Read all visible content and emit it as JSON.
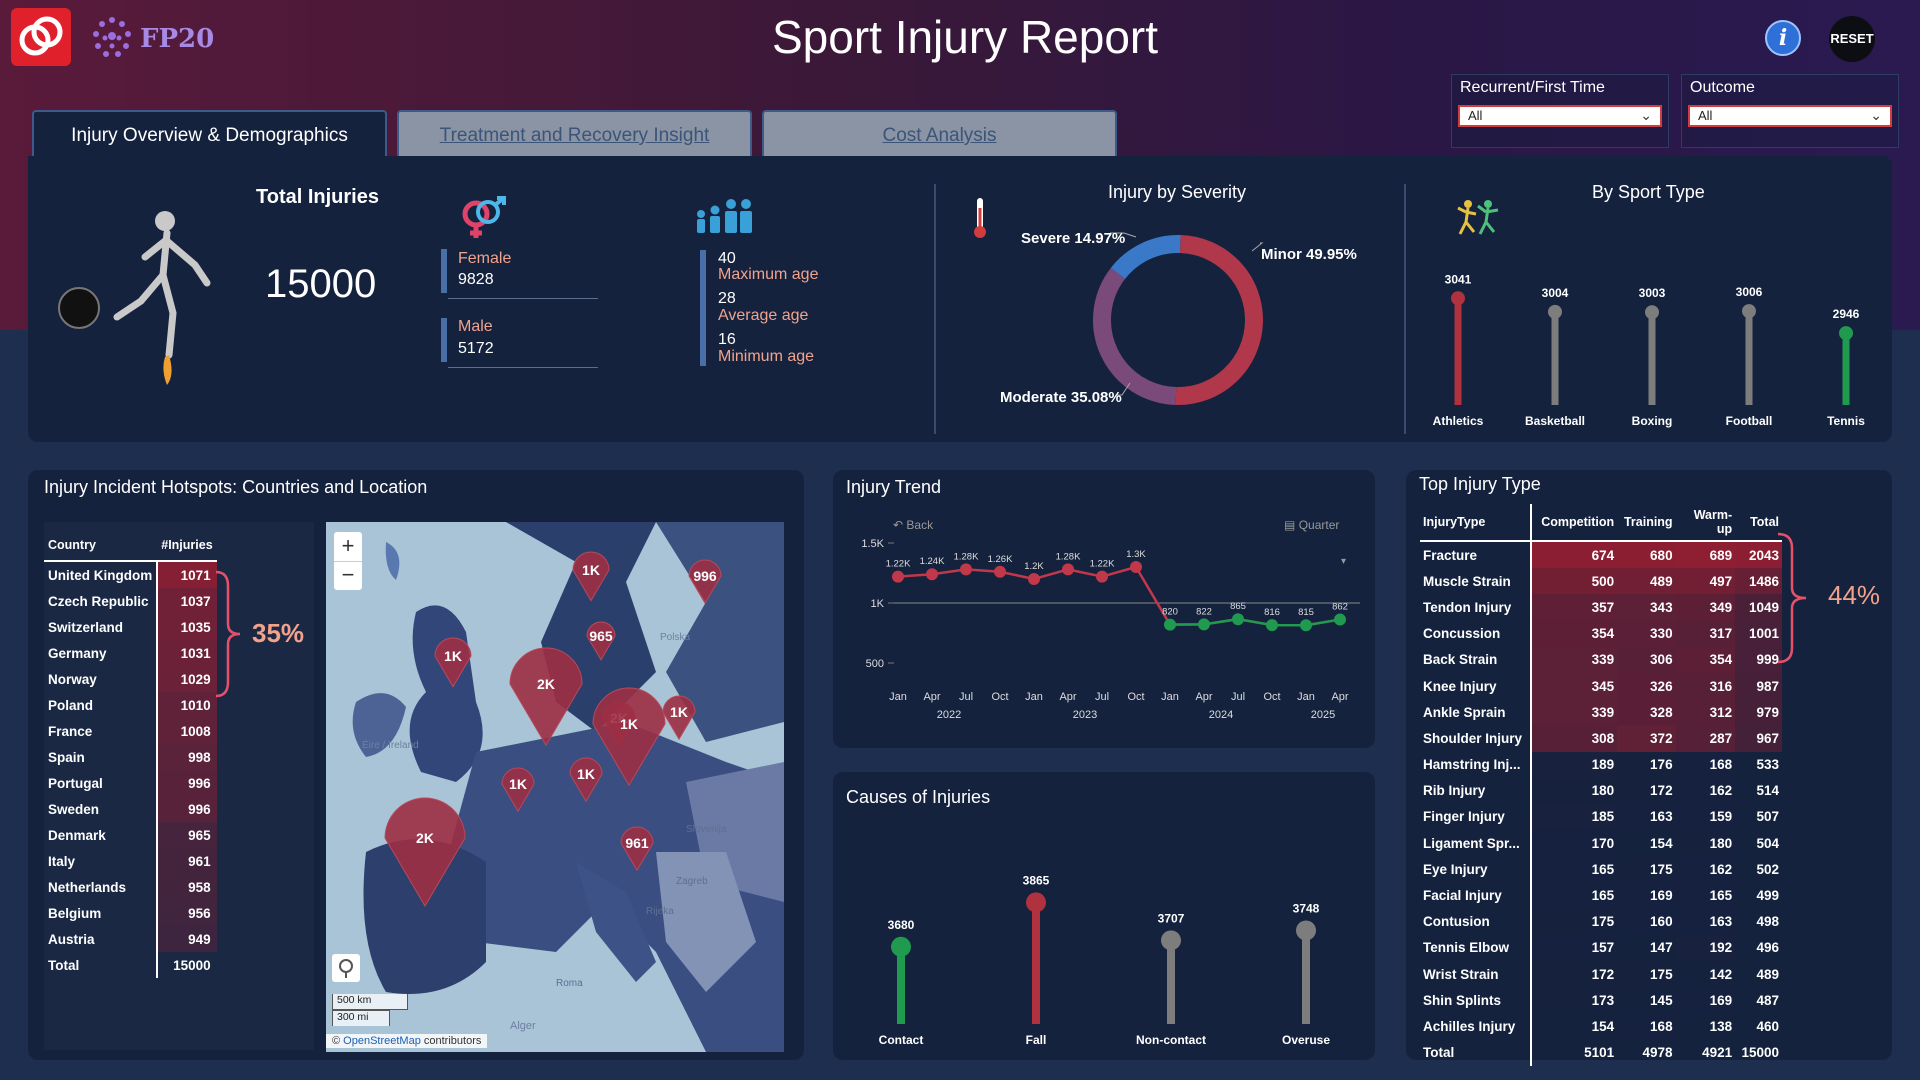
{
  "header": {
    "brand": "FP20",
    "title": "Sport Injury Report",
    "reset_label": "RESET",
    "info_label": "i"
  },
  "filters": [
    {
      "label": "Recurrent/First Time",
      "value": "All"
    },
    {
      "label": "Outcome",
      "value": "All"
    }
  ],
  "tabs": [
    {
      "label": "Injury Overview & Demographics"
    },
    {
      "label": "Treatment and Recovery Insight"
    },
    {
      "label": "Cost Analysis"
    }
  ],
  "kpis": {
    "total_label": "Total Injuries",
    "total_value": "15000",
    "female_label": "Female",
    "female_value": "9828",
    "male_label": "Male",
    "male_value": "5172",
    "max_age_value": "40",
    "max_age_label": "Maximum age",
    "avg_age_value": "28",
    "avg_age_label": "Average age",
    "min_age_value": "16",
    "min_age_label": "Minimum age"
  },
  "severity": {
    "title": "Injury by Severity",
    "slices": [
      {
        "label": "Minor 49.95%",
        "pct": 49.95,
        "color": "#b0384a"
      },
      {
        "label": "Moderate 35.08%",
        "pct": 35.08,
        "color": "#7a4a7a"
      },
      {
        "label": "Severe 14.97%",
        "pct": 14.97,
        "color": "#3a78c8"
      }
    ]
  },
  "sport_type": {
    "title": "By Sport Type",
    "items": [
      {
        "label": "Athletics",
        "value": 3041,
        "color": "#b0323e"
      },
      {
        "label": "Basketball",
        "value": 3004,
        "color": "#7d7d7d"
      },
      {
        "label": "Boxing",
        "value": 3003,
        "color": "#7d7d7d"
      },
      {
        "label": "Football",
        "value": 3006,
        "color": "#7d7d7d"
      },
      {
        "label": "Tennis",
        "value": 2946,
        "color": "#1f9a4e"
      }
    ]
  },
  "hotspots": {
    "title": "Injury Incident Hotspots: Countries and Location",
    "col_country": "Country",
    "col_injuries": "#Injuries",
    "callout": "35%",
    "rows": [
      [
        "United Kingdom",
        "1071"
      ],
      [
        "Czech Republic",
        "1037"
      ],
      [
        "Switzerland",
        "1035"
      ],
      [
        "Germany",
        "1031"
      ],
      [
        "Norway",
        "1029"
      ],
      [
        "Poland",
        "1010"
      ],
      [
        "France",
        "1008"
      ],
      [
        "Spain",
        "998"
      ],
      [
        "Portugal",
        "996"
      ],
      [
        "Sweden",
        "996"
      ],
      [
        "Denmark",
        "965"
      ],
      [
        "Italy",
        "961"
      ],
      [
        "Netherlands",
        "958"
      ],
      [
        "Belgium",
        "956"
      ],
      [
        "Austria",
        "949"
      ]
    ],
    "total_label": "Total",
    "total_value": "15000"
  },
  "map": {
    "zoom_in": "+",
    "zoom_out": "−",
    "scale_km": "500 km",
    "scale_mi": "300 mi",
    "attribution_pre": "© ",
    "attribution_link": "OpenStreetMap",
    "attribution_post": " contributors",
    "place_labels": [
      "Éire / Ireland",
      "Polska",
      "Slovenija",
      "Zagreb",
      "Rijeka",
      "Roma",
      "Alger"
    ],
    "pins": [
      {
        "label": "1K"
      },
      {
        "label": "996"
      },
      {
        "label": "1K"
      },
      {
        "label": "965"
      },
      {
        "label": "2K"
      },
      {
        "label": "1K"
      },
      {
        "label": "2K"
      },
      {
        "label": "1K"
      },
      {
        "label": "1K"
      },
      {
        "label": "1K"
      },
      {
        "label": "2K"
      },
      {
        "label": "961"
      }
    ]
  },
  "trend": {
    "title": "Injury Trend",
    "back_label": "Back",
    "drill_label": "Quarter",
    "chart_data": {
      "type": "line",
      "y_ticks": [
        "1.5K",
        "1K",
        "500"
      ],
      "ylim": [
        0,
        1500
      ],
      "x": [
        "Jan",
        "Apr",
        "Jul",
        "Oct",
        "Jan",
        "Apr",
        "Jul",
        "Oct",
        "Jan",
        "Apr",
        "Jul",
        "Oct",
        "Jan",
        "Apr"
      ],
      "years": [
        "2022",
        "2023",
        "2024",
        "2025"
      ],
      "values": [
        1220,
        1240,
        1280,
        1260,
        1200,
        1280,
        1220,
        1300,
        820,
        822,
        865,
        816,
        815,
        862
      ],
      "labels": [
        "1.22K",
        "1.24K",
        "1.28K",
        "1.26K",
        "1.2K",
        "1.28K",
        "1.22K",
        "1.3K",
        "820",
        "822",
        "865",
        "816",
        "815",
        "862"
      ]
    }
  },
  "causes": {
    "title": "Causes of Injuries",
    "items": [
      {
        "label": "Contact",
        "value": 3680,
        "color": "#1f9a4e"
      },
      {
        "label": "Fall",
        "value": 3865,
        "color": "#b0323e"
      },
      {
        "label": "Non-contact",
        "value": 3707,
        "color": "#7d7d7d"
      },
      {
        "label": "Overuse",
        "value": 3748,
        "color": "#7d7d7d"
      }
    ]
  },
  "top_injury": {
    "title": "Top Injury Type",
    "callout": "44%",
    "headers": [
      "InjuryType",
      "Competition",
      "Training",
      "Warm-up",
      "Total"
    ],
    "rows": [
      [
        "Fracture",
        "674",
        "680",
        "689",
        "2043"
      ],
      [
        "Muscle Strain",
        "500",
        "489",
        "497",
        "1486"
      ],
      [
        "Tendon Injury",
        "357",
        "343",
        "349",
        "1049"
      ],
      [
        "Concussion",
        "354",
        "330",
        "317",
        "1001"
      ],
      [
        "Back Strain",
        "339",
        "306",
        "354",
        "999"
      ],
      [
        "Knee Injury",
        "345",
        "326",
        "316",
        "987"
      ],
      [
        "Ankle Sprain",
        "339",
        "328",
        "312",
        "979"
      ],
      [
        "Shoulder Injury",
        "308",
        "372",
        "287",
        "967"
      ],
      [
        "Hamstring Inj...",
        "189",
        "176",
        "168",
        "533"
      ],
      [
        "Rib Injury",
        "180",
        "172",
        "162",
        "514"
      ],
      [
        "Finger Injury",
        "185",
        "163",
        "159",
        "507"
      ],
      [
        "Ligament Spr...",
        "170",
        "154",
        "180",
        "504"
      ],
      [
        "Eye Injury",
        "165",
        "175",
        "162",
        "502"
      ],
      [
        "Facial Injury",
        "165",
        "169",
        "165",
        "499"
      ],
      [
        "Contusion",
        "175",
        "160",
        "163",
        "498"
      ],
      [
        "Tennis Elbow",
        "157",
        "147",
        "192",
        "496"
      ],
      [
        "Wrist Strain",
        "172",
        "175",
        "142",
        "489"
      ],
      [
        "Shin Splints",
        "173",
        "145",
        "169",
        "487"
      ],
      [
        "Achilles Injury",
        "154",
        "168",
        "138",
        "460"
      ]
    ],
    "total_row": [
      "Total",
      "5101",
      "4978",
      "4921",
      "15000"
    ]
  }
}
